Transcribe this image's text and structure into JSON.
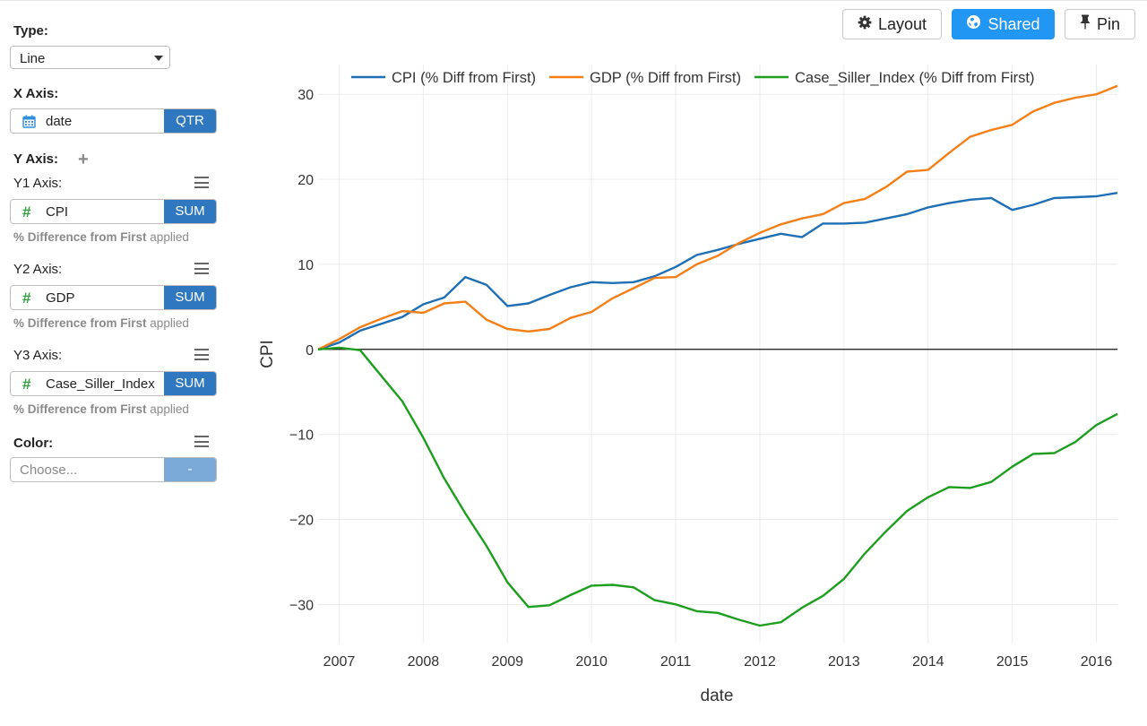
{
  "sidebar": {
    "type_label": "Type:",
    "type_value": "Line",
    "x_axis_label": "X Axis:",
    "x_field": "date",
    "x_agg": "QTR",
    "y_axis_label": "Y Axis:",
    "y_axes": [
      {
        "label": "Y1 Axis:",
        "field": "CPI",
        "agg": "SUM",
        "note_bold": "% Difference from First",
        "note_rest": " applied"
      },
      {
        "label": "Y2 Axis:",
        "field": "GDP",
        "agg": "SUM",
        "note_bold": "% Difference from First",
        "note_rest": " applied"
      },
      {
        "label": "Y3 Axis:",
        "field": "Case_Siller_Index",
        "agg": "SUM",
        "note_bold": "% Difference from First",
        "note_rest": " applied"
      }
    ],
    "color_label": "Color:",
    "color_placeholder": "Choose...",
    "color_button": "-"
  },
  "toolbar": {
    "layout_label": "Layout",
    "shared_label": "Shared",
    "pin_label": "Pin"
  },
  "colors": {
    "primary": "#2f78c0",
    "shared_active": "#2196f3",
    "hash": "#2e9e3a"
  },
  "chart_data": {
    "type": "line",
    "xlabel": "date",
    "ylabel": "CPI",
    "xlim": [
      2006.75,
      2016.25
    ],
    "ylim": [
      -34.5,
      33.5
    ],
    "x_ticks": [
      2007,
      2008,
      2009,
      2010,
      2011,
      2012,
      2013,
      2014,
      2015,
      2016
    ],
    "y_ticks": [
      -30,
      -20,
      -10,
      0,
      10,
      20,
      30
    ],
    "grid": true,
    "legend_position": "top",
    "x": [
      2006.75,
      2007.0,
      2007.25,
      2007.5,
      2007.75,
      2008.0,
      2008.25,
      2008.5,
      2008.75,
      2009.0,
      2009.25,
      2009.5,
      2009.75,
      2010.0,
      2010.25,
      2010.5,
      2010.75,
      2011.0,
      2011.25,
      2011.5,
      2011.75,
      2012.0,
      2012.25,
      2012.5,
      2012.75,
      2013.0,
      2013.25,
      2013.5,
      2013.75,
      2014.0,
      2014.25,
      2014.5,
      2014.75,
      2015.0,
      2015.25,
      2015.5,
      2015.75,
      2016.0,
      2016.25
    ],
    "series": [
      {
        "name": "CPI (% Diff from First)",
        "color": "#1f6fb4",
        "values": [
          0,
          0.8,
          2.2,
          3,
          3.8,
          5.3,
          6.1,
          8.5,
          7.6,
          5.1,
          5.4,
          6.4,
          7.3,
          7.9,
          7.8,
          7.9,
          8.6,
          9.7,
          11.1,
          11.7,
          12.4,
          13,
          13.6,
          13.2,
          14.8,
          14.8,
          14.9,
          15.4,
          15.9,
          16.7,
          17.2,
          17.6,
          17.8,
          16.4,
          17,
          17.8,
          17.9,
          18,
          18.4
        ]
      },
      {
        "name": "GDP (% Diff from First)",
        "color": "#f57f17",
        "values": [
          0,
          1.2,
          2.6,
          3.6,
          4.5,
          4.3,
          5.4,
          5.6,
          3.5,
          2.4,
          2.1,
          2.4,
          3.7,
          4.4,
          6,
          7.2,
          8.4,
          8.5,
          10,
          11,
          12.5,
          13.7,
          14.7,
          15.4,
          15.9,
          17.2,
          17.7,
          19.1,
          20.9,
          21.1,
          23.1,
          25,
          25.8,
          26.4,
          28,
          29,
          29.6,
          30,
          31
        ]
      },
      {
        "name": "Case_Siller_Index (% Diff from First)",
        "color": "#1e9e1e",
        "values": [
          0,
          0.2,
          -0.1,
          -3.1,
          -6.1,
          -10.4,
          -15.2,
          -19.3,
          -23.1,
          -27.4,
          -30.3,
          -30.1,
          -28.9,
          -27.8,
          -27.7,
          -28,
          -29.5,
          -30,
          -30.8,
          -31,
          -31.8,
          -32.5,
          -32.1,
          -30.4,
          -29,
          -27,
          -24,
          -21.4,
          -19,
          -17.4,
          -16.2,
          -16.3,
          -15.6,
          -13.8,
          -12.3,
          -12.2,
          -10.9,
          -8.9,
          -7.6
        ]
      }
    ]
  }
}
